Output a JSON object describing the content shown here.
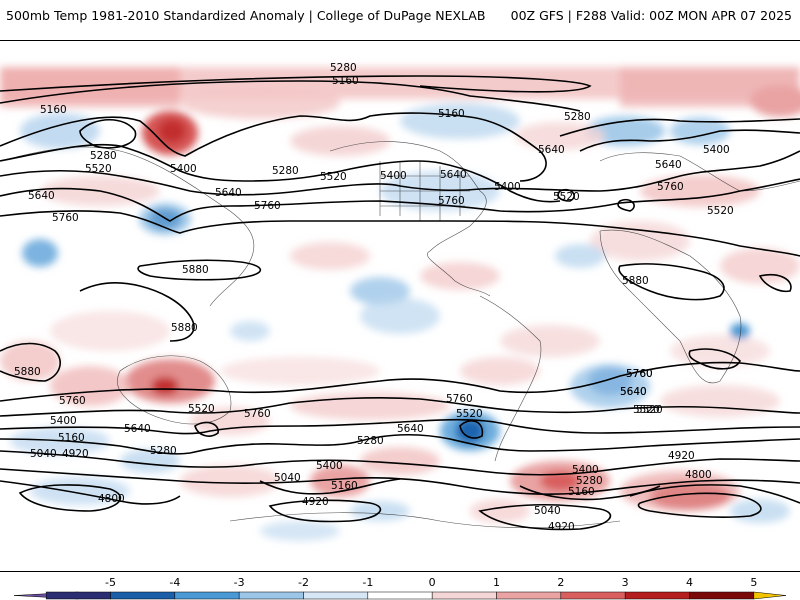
{
  "header": {
    "title_left": "500mb Temp 1981-2010 Standardized Anomaly | College of DuPage NEXLAB",
    "title_right": "00Z GFS | F288 Valid: 00Z MON APR 07 2025"
  },
  "map": {
    "contour_labels": [
      "5280",
      "5160",
      "5160",
      "5160",
      "5280",
      "5280",
      "5520",
      "5400",
      "5280",
      "5520",
      "5640",
      "5640",
      "5760",
      "5640",
      "5400",
      "5640",
      "5400",
      "5400",
      "5520",
      "5760",
      "5760",
      "5520",
      "5640",
      "5760",
      "5880",
      "5880",
      "5880",
      "5880",
      "5760",
      "5760",
      "5760",
      "5640",
      "5520",
      "5400",
      "5160",
      "5040",
      "4920",
      "5280",
      "5520",
      "5760",
      "5640",
      "5520",
      "5640",
      "5280",
      "5400",
      "5040",
      "5160",
      "4920",
      "4800",
      "5760",
      "5640",
      "5520",
      "5400",
      "5280",
      "5160",
      "4920",
      "4800",
      "5040",
      "4920"
    ]
  },
  "colorbar": {
    "tick_labels": [
      "-5",
      "-4",
      "-3",
      "-2",
      "-1",
      "0",
      "1",
      "2",
      "3",
      "4",
      "5"
    ],
    "colors": [
      "#2b2d73",
      "#1a5fa8",
      "#4a98d4",
      "#9cc6e8",
      "#d6e6f4",
      "#ffffff",
      "#f4d6d6",
      "#e9a3a3",
      "#d95f5f",
      "#b51e1e",
      "#7a0a0a"
    ],
    "low_end_color": "#6b4fa3",
    "high_end_color": "#f2c400"
  }
}
